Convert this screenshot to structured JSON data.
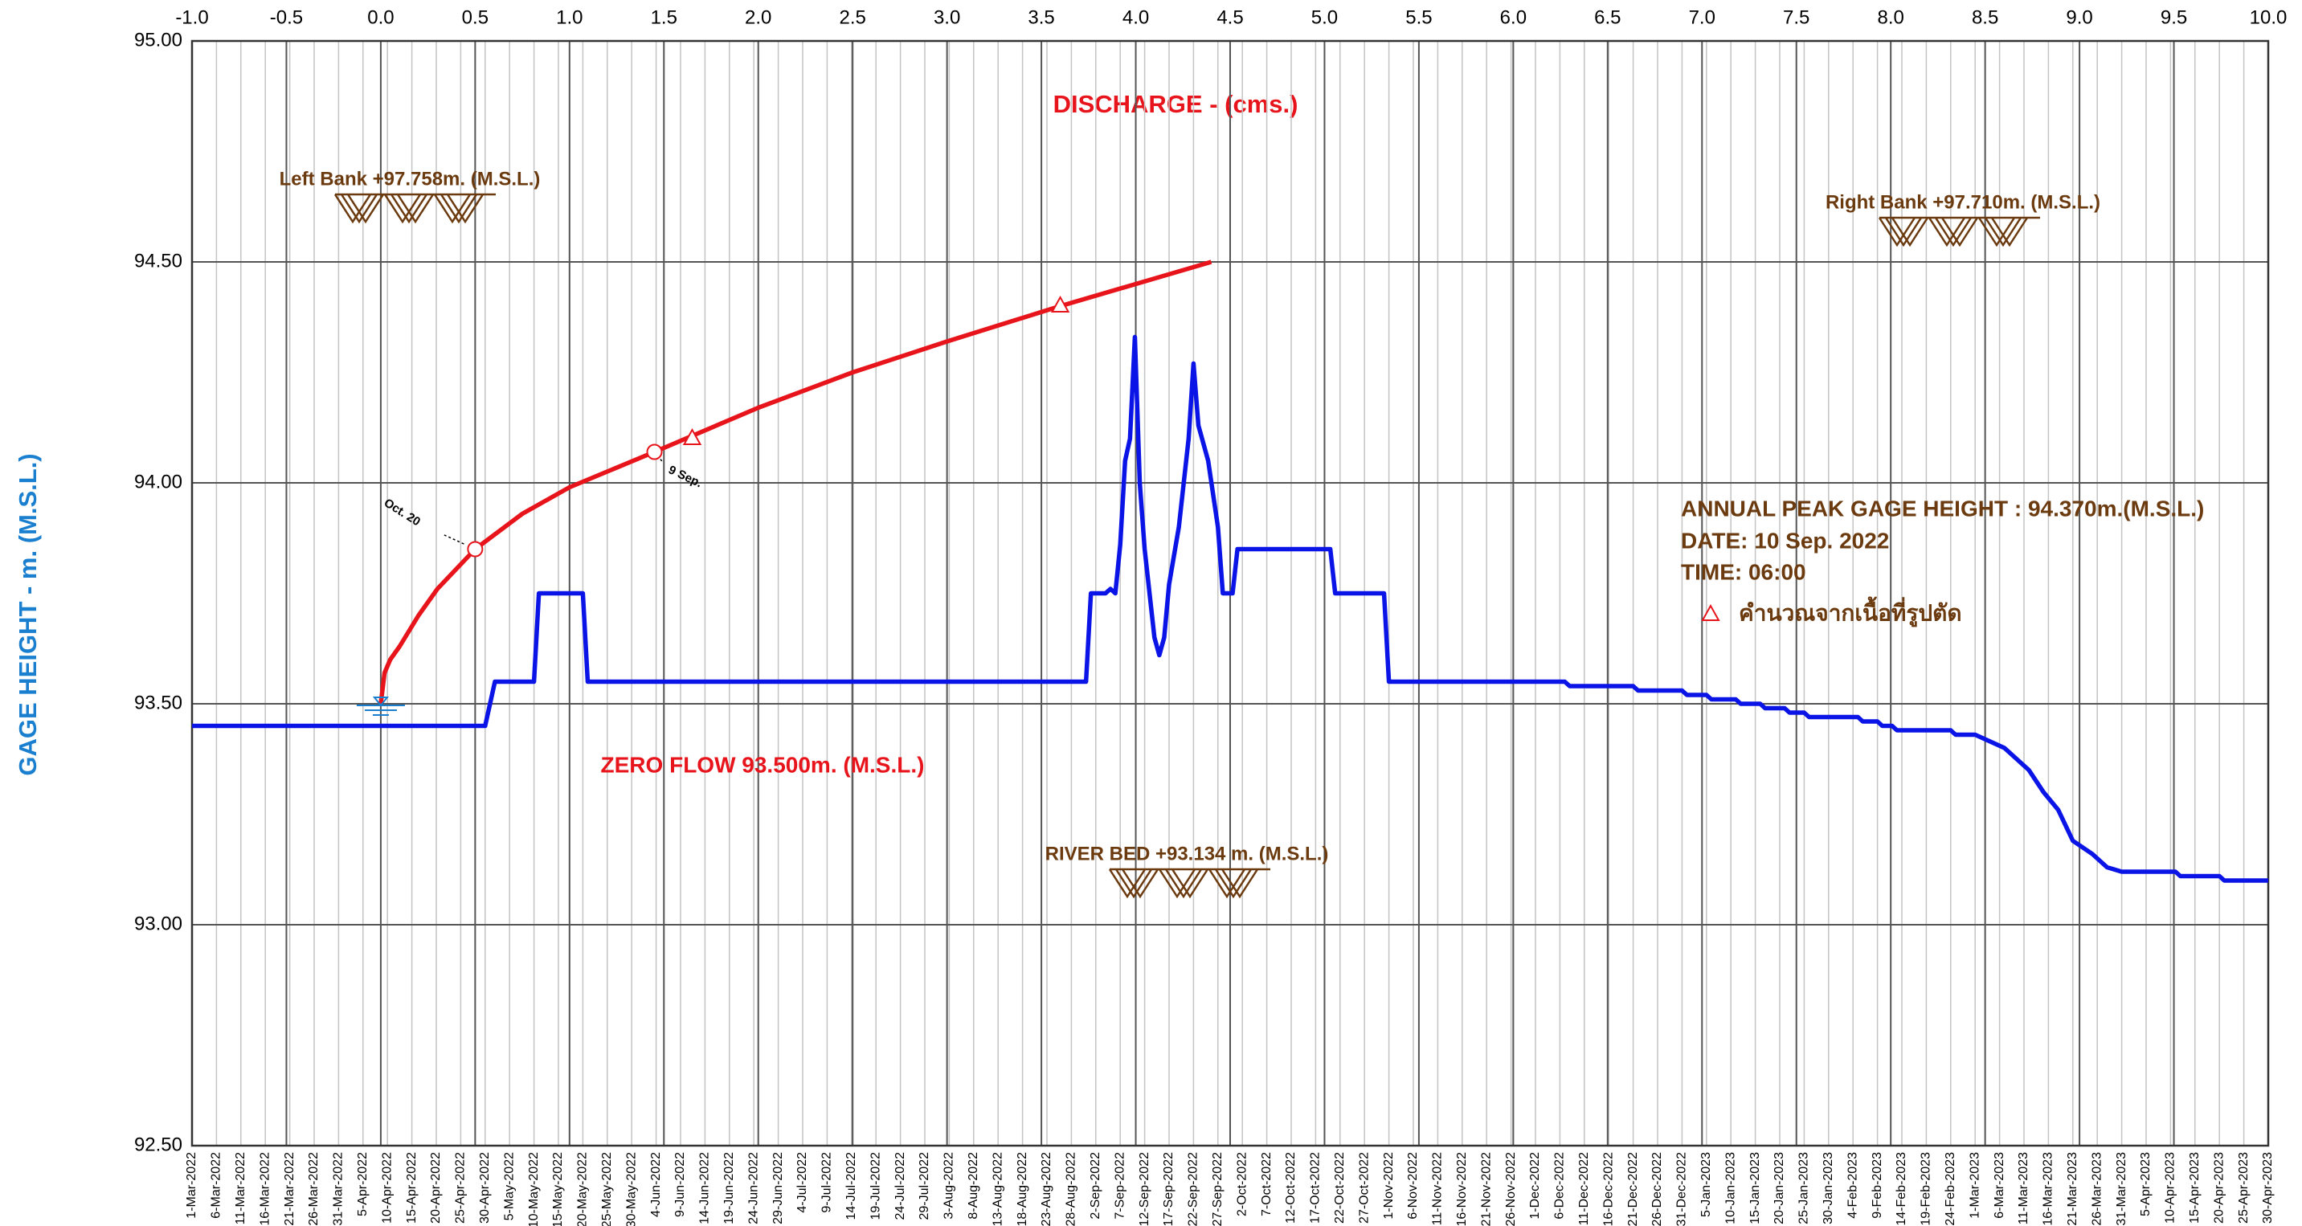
{
  "chart_data": {
    "type": "line",
    "xlabel": "DISCHARGE  -  (cms.)",
    "ylabel": "GAGE  HEIGHT  -  m. (M.S.L.)",
    "xlim": [
      -1,
      10
    ],
    "xticks": [
      {
        "value": -1,
        "label": "-1.0"
      },
      -0.5,
      {
        "value": 0,
        "label": "0.0"
      },
      0.5,
      {
        "value": 1,
        "label": "1.0"
      },
      1.5,
      {
        "value": 2,
        "label": "2.0"
      },
      2.5,
      {
        "value": 3,
        "label": "3.0"
      },
      3.5,
      {
        "value": 4,
        "label": "4.0"
      },
      4.5,
      {
        "value": 5,
        "label": "5.0"
      },
      5.5,
      {
        "value": 6,
        "label": "6.0"
      },
      6.5,
      {
        "value": 7,
        "label": "7.0"
      },
      7.5,
      {
        "value": 8,
        "label": "8.0"
      },
      8.5,
      {
        "value": 9,
        "label": "9.0"
      },
      9.5,
      {
        "value": 10,
        "label": "10.0"
      }
    ],
    "x2lim": [
      "2022-03-01",
      "2023-04-30"
    ],
    "x2ticks": [
      {
        "value": "2022-03-01",
        "label": "1-Mar-2022"
      },
      {
        "value": "2022-03-06",
        "label": "6-Mar-2022"
      },
      {
        "value": "2022-03-11",
        "label": "11-Mar-2022"
      },
      {
        "value": "2022-03-16",
        "label": "16-Mar-2022"
      },
      {
        "value": "2022-03-21",
        "label": "21-Mar-2022"
      },
      {
        "value": "2022-03-26",
        "label": "26-Mar-2022"
      },
      {
        "value": "2022-03-31",
        "label": "31-Mar-2022"
      },
      {
        "value": "2022-04-05",
        "label": "5-Apr-2022"
      },
      {
        "value": "2022-04-10",
        "label": "10-Apr-2022"
      },
      {
        "value": "2022-04-15",
        "label": "15-Apr-2022"
      },
      {
        "value": "2022-04-20",
        "label": "20-Apr-2022"
      },
      {
        "value": "2022-04-25",
        "label": "25-Apr-2022"
      },
      {
        "value": "2022-04-30",
        "label": "30-Apr-2022"
      },
      {
        "value": "2022-05-05",
        "label": "5-May-2022"
      },
      {
        "value": "2022-05-10",
        "label": "10-May-2022"
      },
      {
        "value": "2022-05-15",
        "label": "15-May-2022"
      },
      {
        "value": "2022-05-20",
        "label": "20-May-2022"
      },
      {
        "value": "2022-05-25",
        "label": "25-May-2022"
      },
      {
        "value": "2022-05-30",
        "label": "30-May-2022"
      },
      {
        "value": "2022-06-04",
        "label": "4-Jun-2022"
      },
      {
        "value": "2022-06-09",
        "label": "9-Jun-2022"
      },
      {
        "value": "2022-06-14",
        "label": "14-Jun-2022"
      },
      {
        "value": "2022-06-19",
        "label": "19-Jun-2022"
      },
      {
        "value": "2022-06-24",
        "label": "24-Jun-2022"
      },
      {
        "value": "2022-06-29",
        "label": "29-Jun-2022"
      },
      {
        "value": "2022-07-04",
        "label": "4-Jul-2022"
      },
      {
        "value": "2022-07-09",
        "label": "9-Jul-2022"
      },
      {
        "value": "2022-07-14",
        "label": "14-Jul-2022"
      },
      {
        "value": "2022-07-19",
        "label": "19-Jul-2022"
      },
      {
        "value": "2022-07-24",
        "label": "24-Jul-2022"
      },
      {
        "value": "2022-07-29",
        "label": "29-Jul-2022"
      },
      {
        "value": "2022-08-03",
        "label": "3-Aug-2022"
      },
      {
        "value": "2022-08-08",
        "label": "8-Aug-2022"
      },
      {
        "value": "2022-08-13",
        "label": "13-Aug-2022"
      },
      {
        "value": "2022-08-18",
        "label": "18-Aug-2022"
      },
      {
        "value": "2022-08-23",
        "label": "23-Aug-2022"
      },
      {
        "value": "2022-08-28",
        "label": "28-Aug-2022"
      },
      {
        "value": "2022-09-02",
        "label": "2-Sep-2022"
      },
      {
        "value": "2022-09-07",
        "label": "7-Sep-2022"
      },
      {
        "value": "2022-09-12",
        "label": "12-Sep-2022"
      },
      {
        "value": "2022-09-17",
        "label": "17-Sep-2022"
      },
      {
        "value": "2022-09-22",
        "label": "22-Sep-2022"
      },
      {
        "value": "2022-09-27",
        "label": "27-Sep-2022"
      },
      {
        "value": "2022-10-02",
        "label": "2-Oct-2022"
      },
      {
        "value": "2022-10-07",
        "label": "7-Oct-2022"
      },
      {
        "value": "2022-10-12",
        "label": "12-Oct-2022"
      },
      {
        "value": "2022-10-17",
        "label": "17-Oct-2022"
      },
      {
        "value": "2022-10-22",
        "label": "22-Oct-2022"
      },
      {
        "value": "2022-10-27",
        "label": "27-Oct-2022"
      },
      {
        "value": "2022-11-01",
        "label": "1-Nov-2022"
      },
      {
        "value": "2022-11-06",
        "label": "6-Nov-2022"
      },
      {
        "value": "2022-11-11",
        "label": "11-Nov-2022"
      },
      {
        "value": "2022-11-16",
        "label": "16-Nov-2022"
      },
      {
        "value": "2022-11-21",
        "label": "21-Nov-2022"
      },
      {
        "value": "2022-11-26",
        "label": "26-Nov-2022"
      },
      {
        "value": "2022-12-01",
        "label": "1-Dec-2022"
      },
      {
        "value": "2022-12-06",
        "label": "6-Dec-2022"
      },
      {
        "value": "2022-12-11",
        "label": "11-Dec-2022"
      },
      {
        "value": "2022-12-16",
        "label": "16-Dec-2022"
      },
      {
        "value": "2022-12-21",
        "label": "21-Dec-2022"
      },
      {
        "value": "2022-12-26",
        "label": "26-Dec-2022"
      },
      {
        "value": "2022-12-31",
        "label": "31-Dec-2022"
      },
      {
        "value": "2023-01-05",
        "label": "5-Jan-2023"
      },
      {
        "value": "2023-01-10",
        "label": "10-Jan-2023"
      },
      {
        "value": "2023-01-15",
        "label": "15-Jan-2023"
      },
      {
        "value": "2023-01-20",
        "label": "20-Jan-2023"
      },
      {
        "value": "2023-01-25",
        "label": "25-Jan-2023"
      },
      {
        "value": "2023-01-30",
        "label": "30-Jan-2023"
      },
      {
        "value": "2023-02-04",
        "label": "4-Feb-2023"
      },
      {
        "value": "2023-02-09",
        "label": "9-Feb-2023"
      },
      {
        "value": "2023-02-14",
        "label": "14-Feb-2023"
      },
      {
        "value": "2023-02-19",
        "label": "19-Feb-2023"
      },
      {
        "value": "2023-02-24",
        "label": "24-Feb-2023"
      },
      {
        "value": "2023-03-01",
        "label": "1-Mar-2023"
      },
      {
        "value": "2023-03-06",
        "label": "6-Mar-2023"
      },
      {
        "value": "2023-03-11",
        "label": "11-Mar-2023"
      },
      {
        "value": "2023-03-16",
        "label": "16-Mar-2023"
      },
      {
        "value": "2023-03-21",
        "label": "21-Mar-2023"
      },
      {
        "value": "2023-03-26",
        "label": "26-Mar-2023"
      },
      {
        "value": "2023-03-31",
        "label": "31-Mar-2023"
      },
      {
        "value": "2023-04-05",
        "label": "5-Apr-2023"
      },
      {
        "value": "2023-04-10",
        "label": "10-Apr-2023"
      },
      {
        "value": "2023-04-15",
        "label": "15-Apr-2023"
      },
      {
        "value": "2023-04-20",
        "label": "20-Apr-2023"
      },
      {
        "value": "2023-04-25",
        "label": "25-Apr-2023"
      },
      {
        "value": "2023-04-30",
        "label": "30-Apr-2023"
      }
    ],
    "ylim": [
      92.5,
      95.0
    ],
    "yticks": [
      {
        "value": 92.5,
        "label": "92.50"
      },
      {
        "value": 93,
        "label": "93.00"
      },
      {
        "value": 93.5,
        "label": "93.50"
      },
      {
        "value": 94,
        "label": "94.00"
      },
      {
        "value": 94.5,
        "label": "94.50"
      },
      {
        "value": 95,
        "label": "95.00"
      }
    ],
    "grid": true,
    "series": [
      {
        "color": "#e8141b",
        "x": [
          0,
          0.02,
          0.05,
          0.1,
          0.2,
          0.3,
          0.5,
          0.75,
          1.0,
          1.45,
          2.0,
          2.5,
          3.0,
          3.6,
          4.0,
          4.4
        ],
        "values": [
          93.5,
          93.57,
          93.6,
          93.63,
          93.7,
          93.76,
          93.85,
          93.93,
          93.99,
          94.07,
          94.17,
          94.25,
          94.32,
          94.4,
          94.45,
          94.5
        ]
      },
      {
        "axis": "x2",
        "color": "#0a14e6",
        "x": [
          "2022-03-01",
          "2022-04-30",
          "2022-05-02",
          "2022-05-10",
          "2022-05-11",
          "2022-05-20",
          "2022-05-21",
          "2022-08-31",
          "2022-09-01",
          "2022-09-04",
          "2022-09-05",
          "2022-09-06",
          "2022-09-07",
          "2022-09-08",
          "2022-09-09",
          "2022-09-10",
          "2022-09-11",
          "2022-09-12",
          "2022-09-13",
          "2022-09-14",
          "2022-09-15",
          "2022-09-16",
          "2022-09-17",
          "2022-09-19",
          "2022-09-21",
          "2022-09-22",
          "2022-09-23",
          "2022-09-25",
          "2022-09-27",
          "2022-09-28",
          "2022-09-30",
          "2022-10-01",
          "2022-10-20",
          "2022-10-21",
          "2022-10-31",
          "2022-11-01",
          "2022-12-07",
          "2022-12-08",
          "2022-12-21",
          "2022-12-22",
          "2022-12-31",
          "2023-01-01",
          "2023-01-05",
          "2023-01-06",
          "2023-01-11",
          "2023-01-12",
          "2023-01-16",
          "2023-01-17",
          "2023-01-21",
          "2023-01-22",
          "2023-01-25",
          "2023-01-26",
          "2023-02-05",
          "2023-02-06",
          "2023-02-09",
          "2023-02-10",
          "2023-02-12",
          "2023-02-13",
          "2023-02-24",
          "2023-02-25",
          "2023-03-01",
          "2023-03-03",
          "2023-03-05",
          "2023-03-07",
          "2023-03-08",
          "2023-03-10",
          "2023-03-12",
          "2023-03-15",
          "2023-03-18",
          "2023-03-21",
          "2023-03-25",
          "2023-03-28",
          "2023-03-31",
          "2023-04-11",
          "2023-04-12",
          "2023-04-20",
          "2023-04-21",
          "2023-04-30"
        ],
        "values": [
          93.45,
          93.45,
          93.55,
          93.55,
          93.75,
          93.75,
          93.55,
          93.55,
          93.75,
          93.75,
          93.76,
          93.75,
          93.86,
          94.05,
          94.1,
          94.33,
          94.0,
          93.85,
          93.75,
          93.65,
          93.61,
          93.65,
          93.77,
          93.9,
          94.1,
          94.27,
          94.13,
          94.05,
          93.9,
          93.75,
          93.75,
          93.85,
          93.85,
          93.75,
          93.75,
          93.55,
          93.55,
          93.54,
          93.54,
          93.53,
          93.53,
          93.52,
          93.52,
          93.51,
          93.51,
          93.5,
          93.5,
          93.49,
          93.49,
          93.48,
          93.48,
          93.47,
          93.47,
          93.46,
          93.46,
          93.45,
          93.45,
          93.44,
          93.44,
          93.43,
          93.43,
          93.42,
          93.41,
          93.4,
          93.39,
          93.37,
          93.35,
          93.3,
          93.26,
          93.19,
          93.16,
          93.13,
          93.12,
          93.12,
          93.11,
          93.11,
          93.1,
          93.1
        ]
      },
      {
        "name": "คำนวณจากเนื้อที่รูปตัด",
        "marker": "triangle",
        "color": "#e8141b",
        "x": [
          1.65,
          3.6
        ],
        "values": [
          94.1,
          94.4
        ]
      },
      {
        "marker": "circle",
        "color": "#e8141b",
        "x": [
          0.5,
          1.45
        ],
        "values": [
          93.85,
          94.07
        ],
        "point_labels": [
          "Oct. 20",
          "9 Sep."
        ]
      }
    ],
    "annotations": [
      {
        "text": "Left  Bank  +97.758m. (M.S.L.)"
      },
      {
        "text": "Right  Bank  +97.710m. (M.S.L.)"
      },
      {
        "text": "RIVER  BED +93.134 m. (M.S.L.)"
      },
      {
        "text": "ZERO  FLOW  93.500m. (M.S.L.)"
      },
      {
        "text": "ANNUAL PEAK GAGE HEIGHT : 94.370m.(M.S.L.)"
      },
      {
        "text": "DATE:  10  Sep.  2022"
      },
      {
        "text": "TIME: 06:00"
      }
    ]
  }
}
